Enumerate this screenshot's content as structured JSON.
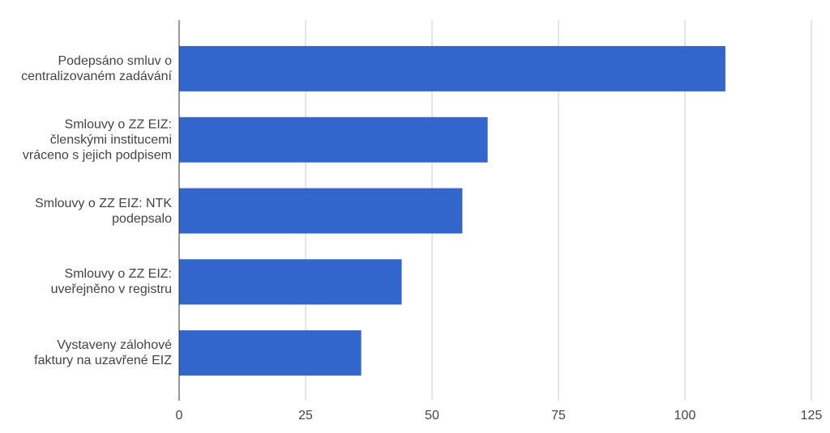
{
  "chart_data": {
    "type": "bar",
    "orientation": "horizontal",
    "categories": [
      "Podepsáno smluv o centralizovaném zadávání",
      "Smlouvy o ZZ EIZ: členskými institucemi vráceno s jejich podpisem",
      "Smlouvy o ZZ EIZ: NTK podepsalo",
      "Smlouvy o ZZ EIZ: uveřejněno v registru",
      "Vystaveny zálohové faktury na uzavřené EIZ"
    ],
    "values": [
      108,
      61,
      56,
      44,
      36
    ],
    "color": "#3366cc",
    "xlim": [
      0,
      125
    ],
    "xticks": [
      0,
      25,
      50,
      75,
      100,
      125
    ],
    "grid": true
  }
}
